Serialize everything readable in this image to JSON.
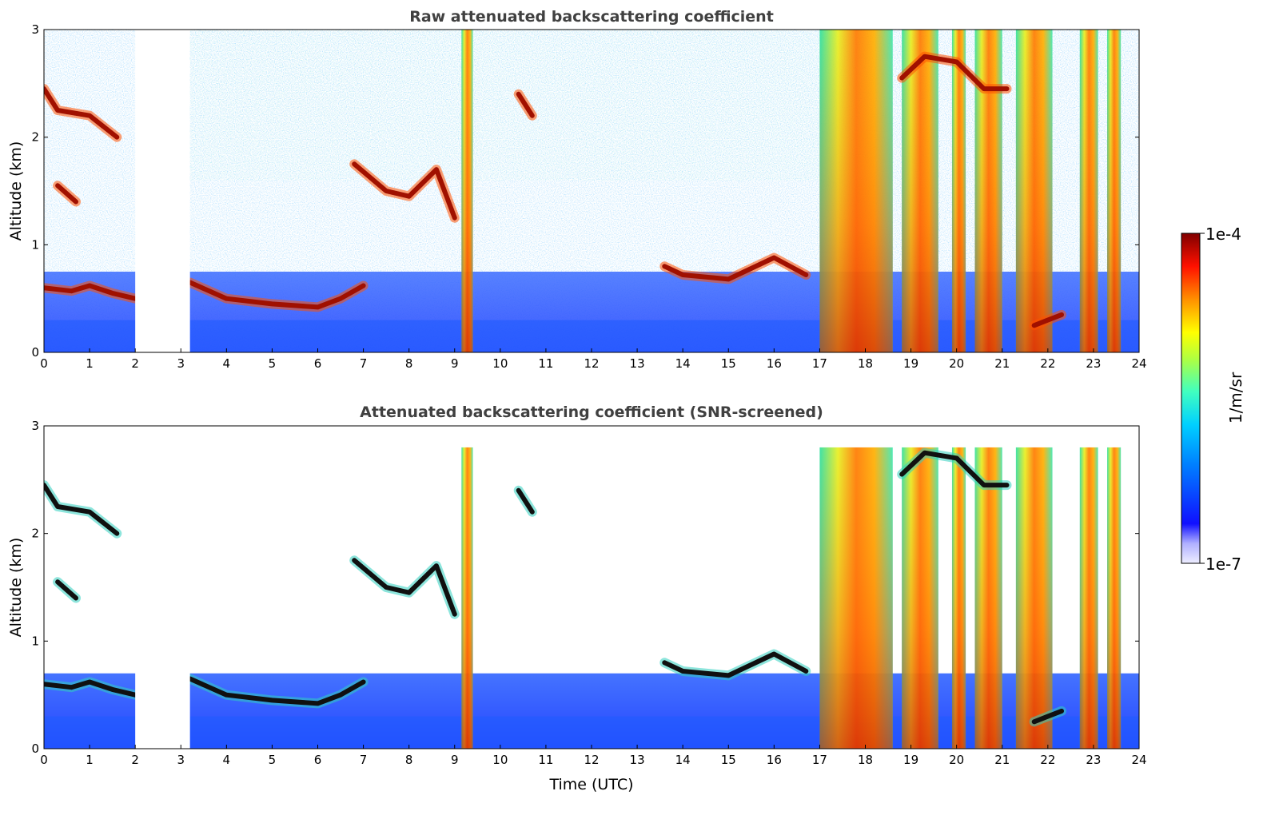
{
  "chart_data": [
    {
      "type": "heatmap",
      "title": "Raw attenuated backscattering coefficient",
      "xlabel": "",
      "ylabel": "Altitude (km)",
      "xlim": [
        0,
        24
      ],
      "ylim": [
        0,
        3
      ],
      "x_ticks": [
        0,
        1,
        2,
        3,
        4,
        5,
        6,
        7,
        8,
        9,
        10,
        11,
        12,
        13,
        14,
        15,
        16,
        17,
        18,
        19,
        20,
        21,
        22,
        23,
        24
      ],
      "y_ticks": [
        0,
        1,
        2,
        3
      ],
      "data_gaps_utc": [
        [
          2.0,
          3.2
        ]
      ],
      "layers": [
        {
          "kind": "boundary-layer-top",
          "points": [
            [
              0.0,
              0.6
            ],
            [
              0.6,
              0.57
            ],
            [
              1.0,
              0.62
            ],
            [
              1.5,
              0.55
            ],
            [
              2.0,
              0.5
            ]
          ]
        },
        {
          "kind": "boundary-layer-top",
          "points": [
            [
              3.2,
              0.65
            ],
            [
              4.0,
              0.5
            ],
            [
              5.0,
              0.45
            ],
            [
              6.0,
              0.42
            ],
            [
              6.5,
              0.5
            ],
            [
              7.0,
              0.62
            ]
          ]
        },
        {
          "kind": "cloud-layer",
          "points": [
            [
              0.0,
              2.45
            ],
            [
              0.3,
              2.25
            ],
            [
              1.0,
              2.2
            ],
            [
              1.6,
              2.0
            ]
          ]
        },
        {
          "kind": "cloud-layer",
          "points": [
            [
              0.3,
              1.55
            ],
            [
              0.7,
              1.4
            ]
          ]
        },
        {
          "kind": "cloud-layer",
          "points": [
            [
              6.8,
              1.75
            ],
            [
              7.5,
              1.5
            ],
            [
              8.0,
              1.45
            ],
            [
              8.6,
              1.7
            ],
            [
              9.0,
              1.25
            ]
          ]
        },
        {
          "kind": "cloud-layer",
          "points": [
            [
              13.6,
              0.8
            ],
            [
              14.0,
              0.72
            ],
            [
              15.0,
              0.68
            ],
            [
              16.0,
              0.88
            ],
            [
              16.7,
              0.72
            ]
          ]
        },
        {
          "kind": "cloud-layer",
          "points": [
            [
              10.4,
              2.4
            ],
            [
              10.7,
              2.2
            ]
          ]
        },
        {
          "kind": "cloud-layer",
          "points": [
            [
              18.8,
              2.55
            ],
            [
              19.3,
              2.75
            ],
            [
              20.0,
              2.7
            ],
            [
              20.6,
              2.45
            ],
            [
              21.1,
              2.45
            ]
          ]
        },
        {
          "kind": "cloud-layer",
          "points": [
            [
              21.7,
              0.25
            ],
            [
              22.0,
              0.3
            ],
            [
              22.3,
              0.35
            ]
          ]
        }
      ],
      "precipitation_shafts_utc": [
        [
          9.15,
          9.4
        ],
        [
          17.0,
          18.6
        ],
        [
          18.8,
          19.6
        ],
        [
          19.9,
          20.2
        ],
        [
          20.4,
          21.0
        ],
        [
          21.3,
          22.1
        ],
        [
          22.7,
          23.1
        ],
        [
          23.3,
          23.6
        ]
      ]
    },
    {
      "type": "heatmap",
      "title": "Attenuated backscattering coefficient (SNR-screened)",
      "xlabel": "Time (UTC)",
      "ylabel": "Altitude (km)",
      "xlim": [
        0,
        24
      ],
      "ylim": [
        0,
        3
      ],
      "x_ticks": [
        0,
        1,
        2,
        3,
        4,
        5,
        6,
        7,
        8,
        9,
        10,
        11,
        12,
        13,
        14,
        15,
        16,
        17,
        18,
        19,
        20,
        21,
        22,
        23,
        24
      ],
      "y_ticks": [
        0,
        1,
        2,
        3
      ],
      "data_gaps_utc": [
        [
          2.0,
          3.2
        ]
      ]
    }
  ],
  "colorbar": {
    "label": "1/m/sr",
    "max_label": "1e-4",
    "min_label": "1e-7",
    "scale": "log",
    "range": [
      1e-07,
      0.0001
    ],
    "colormap": "jet",
    "colors": [
      "#e8e8ff",
      "#2020ff",
      "#0090ff",
      "#00e8e8",
      "#70ff70",
      "#ffff00",
      "#ff8000",
      "#e00000",
      "#800000"
    ]
  }
}
